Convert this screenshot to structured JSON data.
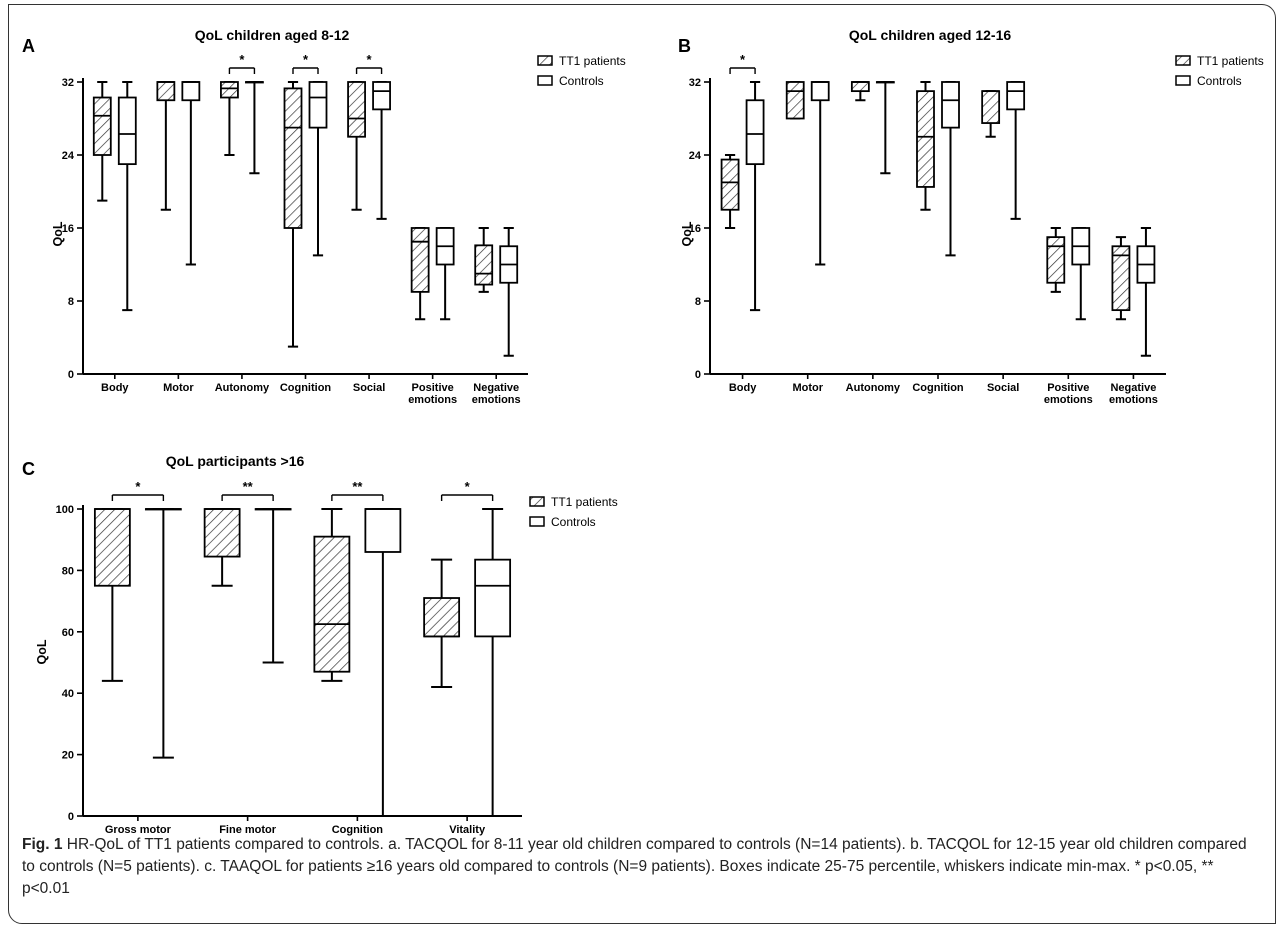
{
  "colors": {
    "hatch": "#333333",
    "line": "#000000"
  },
  "caption": {
    "label": "Fig. 1",
    "text": "HR-QoL of TT1 patients compared to controls. a. TACQOL for 8-11 year old children compared to controls (N=14 patients). b. TACQOL for 12-15 year old children compared to controls (N=5 patients). c. TAAQOL for patients ≥16 years old compared to controls (N=9 patients). Boxes indicate 25-75 percentile, whiskers indicate min-max. * p<0.05, ** p<0.01"
  },
  "chart_data": [
    {
      "panel": "A",
      "type": "box",
      "title": "QoL children aged 8-12",
      "ylabel": "QoL",
      "ylim": [
        0,
        32
      ],
      "yticks": [
        0,
        8,
        16,
        24,
        32
      ],
      "legend": {
        "position": "top-right",
        "entries": [
          "TT1 patients",
          "Controls"
        ]
      },
      "categories": [
        "Body",
        "Motor",
        "Autonomy",
        "Cognition",
        "Social",
        "Positive emotions",
        "Negative emotions"
      ],
      "series": [
        {
          "name": "TT1 patients",
          "style": "hatched",
          "boxes": [
            {
              "min": 19,
              "q1": 24,
              "median": 28.3,
              "q3": 30.3,
              "max": 32
            },
            {
              "min": 18,
              "q1": 30,
              "median": 32,
              "q3": 32,
              "max": 32
            },
            {
              "min": 24,
              "q1": 30.3,
              "median": 31.3,
              "q3": 32,
              "max": 32
            },
            {
              "min": 3,
              "q1": 16,
              "median": 27,
              "q3": 31.3,
              "max": 32
            },
            {
              "min": 18,
              "q1": 26,
              "median": 28,
              "q3": 32,
              "max": 32
            },
            {
              "min": 6,
              "q1": 9,
              "median": 14.5,
              "q3": 16,
              "max": 16
            },
            {
              "min": 9,
              "q1": 9.8,
              "median": 11,
              "q3": 14.1,
              "max": 16
            }
          ]
        },
        {
          "name": "Controls",
          "style": "open",
          "boxes": [
            {
              "min": 7,
              "q1": 23,
              "median": 26.3,
              "q3": 30.3,
              "max": 32
            },
            {
              "min": 12,
              "q1": 30,
              "median": 32,
              "q3": 32,
              "max": 32
            },
            {
              "min": 22,
              "q1": 32,
              "median": 32,
              "q3": 32,
              "max": 32
            },
            {
              "min": 13,
              "q1": 27,
              "median": 30.3,
              "q3": 32,
              "max": 32
            },
            {
              "min": 17,
              "q1": 29,
              "median": 31,
              "q3": 32,
              "max": 32
            },
            {
              "min": 6,
              "q1": 12,
              "median": 14,
              "q3": 16,
              "max": 16
            },
            {
              "min": 2,
              "q1": 10,
              "median": 12,
              "q3": 14,
              "max": 16
            }
          ]
        }
      ],
      "significance": [
        {
          "category": "Autonomy",
          "label": "*"
        },
        {
          "category": "Cognition",
          "label": "*"
        },
        {
          "category": "Social",
          "label": "*"
        }
      ]
    },
    {
      "panel": "B",
      "type": "box",
      "title": "QoL children aged 12-16",
      "ylabel": "QoL",
      "ylim": [
        0,
        32
      ],
      "yticks": [
        0,
        8,
        16,
        24,
        32
      ],
      "legend": {
        "position": "top-right",
        "entries": [
          "TT1 patients",
          "Controls"
        ]
      },
      "categories": [
        "Body",
        "Motor",
        "Autonomy",
        "Cognition",
        "Social",
        "Positive emotions",
        "Negative emotions"
      ],
      "series": [
        {
          "name": "TT1 patients",
          "style": "hatched",
          "boxes": [
            {
              "min": 16,
              "q1": 18,
              "median": 21,
              "q3": 23.5,
              "max": 24
            },
            {
              "min": 28,
              "q1": 28,
              "median": 31,
              "q3": 32,
              "max": 32
            },
            {
              "min": 30,
              "q1": 31,
              "median": 32,
              "q3": 32,
              "max": 32
            },
            {
              "min": 18,
              "q1": 20.5,
              "median": 26,
              "q3": 31,
              "max": 32
            },
            {
              "min": 26,
              "q1": 27.5,
              "median": 31,
              "q3": 31,
              "max": 31
            },
            {
              "min": 9,
              "q1": 10,
              "median": 14,
              "q3": 15,
              "max": 16
            },
            {
              "min": 6,
              "q1": 7,
              "median": 13,
              "q3": 14,
              "max": 15
            }
          ]
        },
        {
          "name": "Controls",
          "style": "open",
          "boxes": [
            {
              "min": 7,
              "q1": 23,
              "median": 26.3,
              "q3": 30,
              "max": 32
            },
            {
              "min": 12,
              "q1": 30,
              "median": 32,
              "q3": 32,
              "max": 32
            },
            {
              "min": 22,
              "q1": 32,
              "median": 32,
              "q3": 32,
              "max": 32
            },
            {
              "min": 13,
              "q1": 27,
              "median": 30,
              "q3": 32,
              "max": 32
            },
            {
              "min": 17,
              "q1": 29,
              "median": 31,
              "q3": 32,
              "max": 32
            },
            {
              "min": 6,
              "q1": 12,
              "median": 14,
              "q3": 16,
              "max": 16
            },
            {
              "min": 2,
              "q1": 10,
              "median": 12,
              "q3": 14,
              "max": 16
            }
          ]
        }
      ],
      "significance": [
        {
          "category": "Body",
          "label": "*"
        }
      ]
    },
    {
      "panel": "C",
      "type": "box",
      "title": "QoL participants >16",
      "ylabel": "QoL",
      "ylim": [
        0,
        100
      ],
      "yticks": [
        0,
        20,
        40,
        60,
        80,
        100
      ],
      "legend": {
        "position": "top-right",
        "entries": [
          "TT1 patients",
          "Controls"
        ]
      },
      "categories": [
        "Gross motor",
        "Fine motor",
        "Cognition",
        "Vitality"
      ],
      "series": [
        {
          "name": "TT1 patients",
          "style": "hatched",
          "boxes": [
            {
              "min": 44,
              "q1": 75,
              "median": 100,
              "q3": 100,
              "max": 100
            },
            {
              "min": 75,
              "q1": 84.5,
              "median": 100,
              "q3": 100,
              "max": 100
            },
            {
              "min": 44,
              "q1": 47,
              "median": 62.5,
              "q3": 91,
              "max": 100
            },
            {
              "min": 42,
              "q1": 58.5,
              "median": 58.5,
              "q3": 71,
              "max": 83.5
            }
          ]
        },
        {
          "name": "Controls",
          "style": "open",
          "boxes": [
            {
              "min": 19,
              "q1": 100,
              "median": 100,
              "q3": 100,
              "max": 100
            },
            {
              "min": 50,
              "q1": 100,
              "median": 100,
              "q3": 100,
              "max": 100
            },
            {
              "min": 0,
              "q1": 86,
              "median": 100,
              "q3": 100,
              "max": 100
            },
            {
              "min": 0,
              "q1": 58.5,
              "median": 75,
              "q3": 83.5,
              "max": 100
            }
          ]
        }
      ],
      "significance": [
        {
          "category": "Gross motor",
          "label": "*"
        },
        {
          "category": "Fine motor",
          "label": "**"
        },
        {
          "category": "Cognition",
          "label": "**"
        },
        {
          "category": "Vitality",
          "label": "*"
        }
      ]
    }
  ]
}
